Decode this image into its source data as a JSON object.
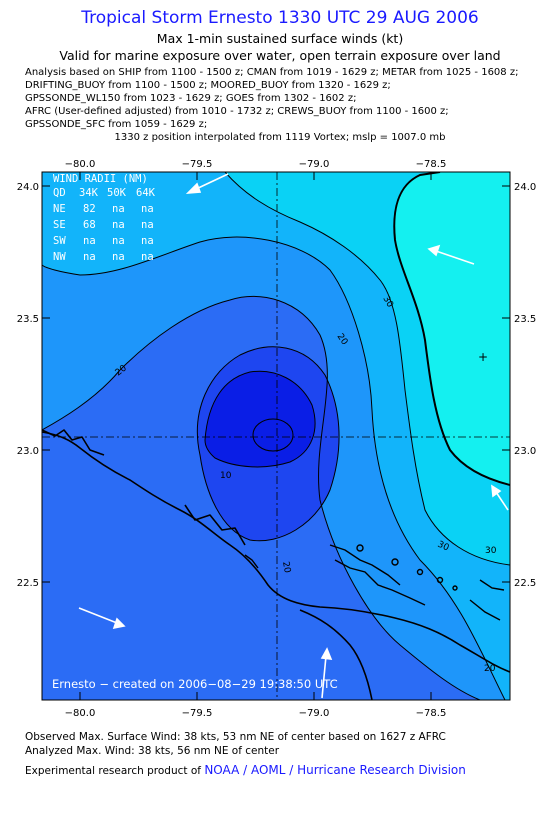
{
  "header": {
    "title": "Tropical Storm Ernesto 1330 UTC 29 AUG 2006",
    "subtitle": "Max 1-min sustained surface winds (kt)",
    "validity": "Valid for marine exposure over water, open terrain exposure over land",
    "sources": [
      "Analysis based on  SHIP from 1100 - 1500 z;  CMAN from 1019 - 1629 z;  METAR from 1025 - 1608 z;",
      "DRIFTING_BUOY from 1100 - 1500 z;  MOORED_BUOY from 1320 - 1629 z;",
      "GPSSONDE_WL150 from 1023 - 1629 z;  GOES from 1302 - 1602 z;",
      "AFRC (User-defined adjusted) from 1010 - 1732 z;  CREWS_BUOY from 1100 - 1600 z;",
      "GPSSONDE_SFC from 1059 - 1629 z;"
    ],
    "position_note": "1330 z position interpolated from 1119 Vortex; mslp = 1007.0 mb"
  },
  "map": {
    "lon_labels": [
      "−80.0",
      "−79.5",
      "−79.0",
      "−78.5"
    ],
    "lat_labels": [
      "24.0",
      "23.5",
      "23.0",
      "22.5"
    ],
    "center": {
      "lon": -79.2,
      "lat": 23.05
    },
    "wind_radii": {
      "title": "WIND RADII (NM)",
      "header": [
        "QD",
        "34K",
        "50K",
        "64K"
      ],
      "rows": [
        [
          "NE",
          "82",
          "na",
          "na"
        ],
        [
          "SE",
          "68",
          "na",
          "na"
        ],
        [
          "SW",
          "na",
          "na",
          "na"
        ],
        [
          "NW",
          "na",
          "na",
          "na"
        ]
      ]
    },
    "contour_labels": [
      "10",
      "20",
      "20",
      "20",
      "20",
      "30",
      "30",
      "30"
    ],
    "credit": "Ernesto − created on 2006−08−29 19:38:50 UTC",
    "colors": {
      "lt10": "#0a1ee6",
      "10-15": "#1e46f0",
      "15-20": "#2b6cf5",
      "20-25": "#1e96fa",
      "25-30": "#12b4fa",
      "30-35": "#0ad2f5",
      "gt35": "#14f0f0"
    }
  },
  "footer": {
    "observed": "Observed Max. Surface Wind: 38 kts, 53 nm NE of center based on 1627 z AFRC",
    "analyzed": "Analyzed Max. Wind: 38 kts, 56 nm NE of center",
    "product_prefix": "Experimental research product of ",
    "product_org": "NOAA / AOML / Hurricane Research Division"
  }
}
